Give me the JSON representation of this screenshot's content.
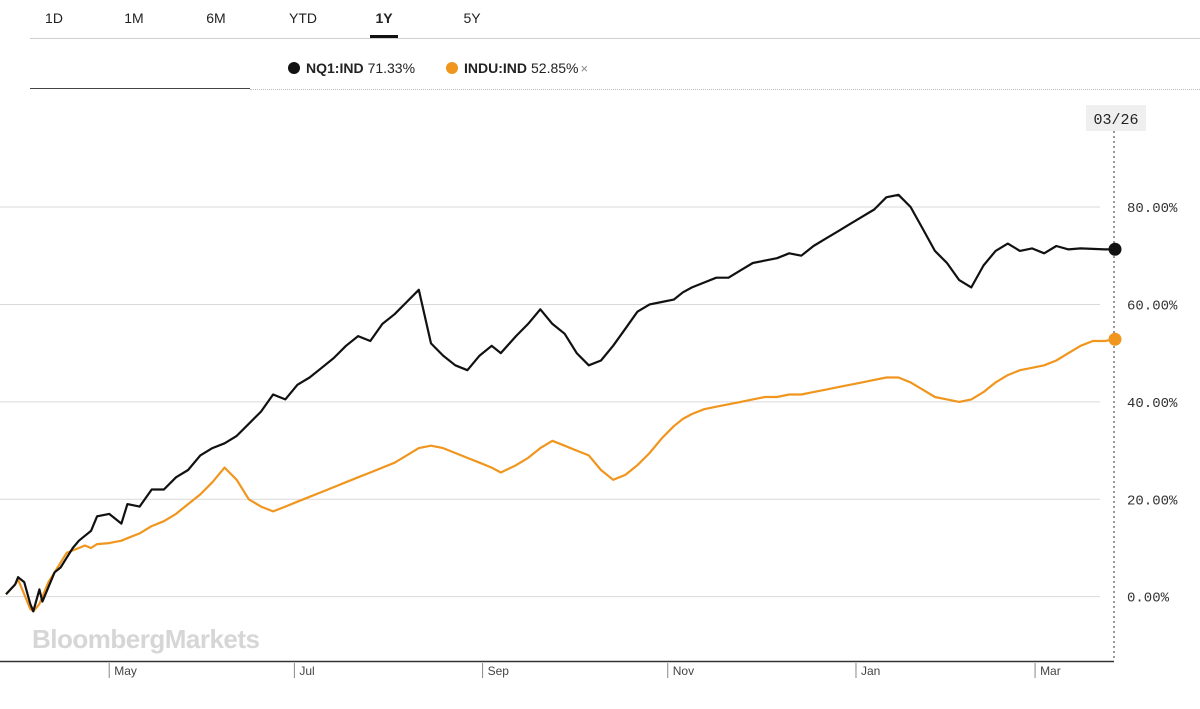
{
  "tabs": [
    {
      "label": "1D",
      "active": false
    },
    {
      "label": "1M",
      "active": false
    },
    {
      "label": "6M",
      "active": false
    },
    {
      "label": "YTD",
      "active": false
    },
    {
      "label": "1Y",
      "active": true
    },
    {
      "label": "5Y",
      "active": false
    }
  ],
  "legend": [
    {
      "name": "NQ1:IND",
      "value": "71.33%",
      "color": "#111111",
      "removable": false
    },
    {
      "name": "INDU:IND",
      "value": "52.85%",
      "color": "#f0961e",
      "removable": true,
      "remove_symbol": "×"
    }
  ],
  "watermark": "BloombergMarkets",
  "chart_data": {
    "type": "line",
    "cursor_date": "03/26",
    "y_ticks": [
      "80.00%",
      "60.00%",
      "40.00%",
      "20.00%",
      "0.00%"
    ],
    "ylim": [
      -13,
      103
    ],
    "x_ticks": [
      "May",
      "Jul",
      "Sep",
      "Nov",
      "Jan",
      "Mar"
    ],
    "xlim": [
      0,
      365
    ],
    "grid": true,
    "series": [
      {
        "name": "NQ1:IND",
        "color": "#111111",
        "end_value": 71.33,
        "x": [
          0,
          3,
          4,
          6,
          8,
          9,
          11,
          12,
          14,
          16,
          18,
          20,
          22,
          24,
          26,
          28,
          30,
          34,
          38,
          40,
          44,
          48,
          52,
          56,
          60,
          64,
          68,
          72,
          76,
          80,
          84,
          88,
          92,
          96,
          100,
          104,
          108,
          112,
          116,
          120,
          124,
          128,
          132,
          136,
          140,
          144,
          148,
          152,
          156,
          160,
          163,
          168,
          172,
          176,
          180,
          184,
          188,
          192,
          196,
          200,
          204,
          208,
          212,
          216,
          220,
          223,
          226,
          230,
          234,
          238,
          242,
          246,
          250,
          254,
          258,
          262,
          266,
          270,
          274,
          278,
          282,
          286,
          290,
          294,
          298,
          302,
          306,
          310,
          314,
          318,
          322,
          326,
          330,
          334,
          338,
          342,
          346,
          350,
          354,
          358,
          362,
          365
        ],
        "y": [
          0.5,
          2.5,
          4,
          3,
          -1.5,
          -3,
          1.5,
          -1,
          2,
          5,
          6,
          8,
          10,
          11.5,
          12.5,
          13.5,
          16.5,
          17,
          15,
          19,
          18.5,
          22,
          22,
          24.5,
          26,
          29,
          30.5,
          31.5,
          33,
          35.5,
          38,
          41.5,
          40.5,
          43.5,
          45,
          47,
          49,
          51.5,
          53.5,
          52.5,
          56,
          58,
          60.5,
          63,
          52,
          49.5,
          47.5,
          46.5,
          49.5,
          51.5,
          50,
          53.5,
          56,
          59,
          56,
          54,
          50,
          47.5,
          48.5,
          51.5,
          55,
          58.5,
          60,
          60.5,
          61,
          62.5,
          63.5,
          64.5,
          65.5,
          65.5,
          67,
          68.5,
          69,
          69.5,
          70.5,
          70,
          72,
          73.5,
          75,
          76.5,
          78,
          79.5,
          82,
          82.5,
          80,
          75.5,
          71,
          68.5,
          65,
          63.5,
          68,
          71,
          72.5,
          71,
          71.5,
          70.5,
          72,
          71.3,
          71.5,
          71.4,
          71.3,
          71.33
        ]
      },
      {
        "name": "INDU:IND",
        "color": "#f0961e",
        "end_value": 52.85,
        "x": [
          0,
          3,
          4,
          6,
          8,
          9,
          11,
          12,
          14,
          16,
          18,
          20,
          22,
          24,
          26,
          28,
          30,
          34,
          38,
          40,
          44,
          48,
          52,
          56,
          60,
          64,
          68,
          72,
          76,
          80,
          84,
          88,
          92,
          96,
          100,
          104,
          108,
          112,
          116,
          120,
          124,
          128,
          132,
          136,
          140,
          144,
          148,
          152,
          156,
          160,
          163,
          168,
          172,
          176,
          180,
          184,
          188,
          192,
          196,
          200,
          204,
          208,
          212,
          216,
          220,
          223,
          226,
          230,
          234,
          238,
          242,
          246,
          250,
          254,
          258,
          262,
          266,
          270,
          274,
          278,
          282,
          286,
          290,
          294,
          298,
          302,
          306,
          310,
          314,
          318,
          322,
          326,
          330,
          334,
          338,
          342,
          346,
          350,
          354,
          358,
          362,
          365
        ],
        "y": [
          0.5,
          2.5,
          3.5,
          0.5,
          -2.5,
          -3,
          -1.5,
          0,
          3,
          5,
          7,
          9,
          9.5,
          10,
          10.5,
          10,
          10.8,
          11,
          11.5,
          12,
          13,
          14.5,
          15.5,
          17,
          19,
          21,
          23.5,
          26.5,
          24,
          20,
          18.5,
          17.5,
          18.5,
          19.5,
          20.5,
          21.5,
          22.5,
          23.5,
          24.5,
          25.5,
          26.5,
          27.5,
          29,
          30.5,
          31,
          30.5,
          29.5,
          28.5,
          27.5,
          26.5,
          25.5,
          27,
          28.5,
          30.5,
          32,
          31,
          30,
          29,
          26,
          24,
          25,
          27,
          29.5,
          32.5,
          35,
          36.5,
          37.5,
          38.5,
          39,
          39.5,
          40,
          40.5,
          41,
          41,
          41.5,
          41.5,
          42,
          42.5,
          43,
          43.5,
          44,
          44.5,
          45,
          45,
          44,
          42.5,
          41,
          40.5,
          40,
          40.5,
          42,
          44,
          45.5,
          46.5,
          47,
          47.5,
          48.5,
          50,
          51.5,
          52.5,
          52.5,
          52.85
        ]
      }
    ]
  }
}
